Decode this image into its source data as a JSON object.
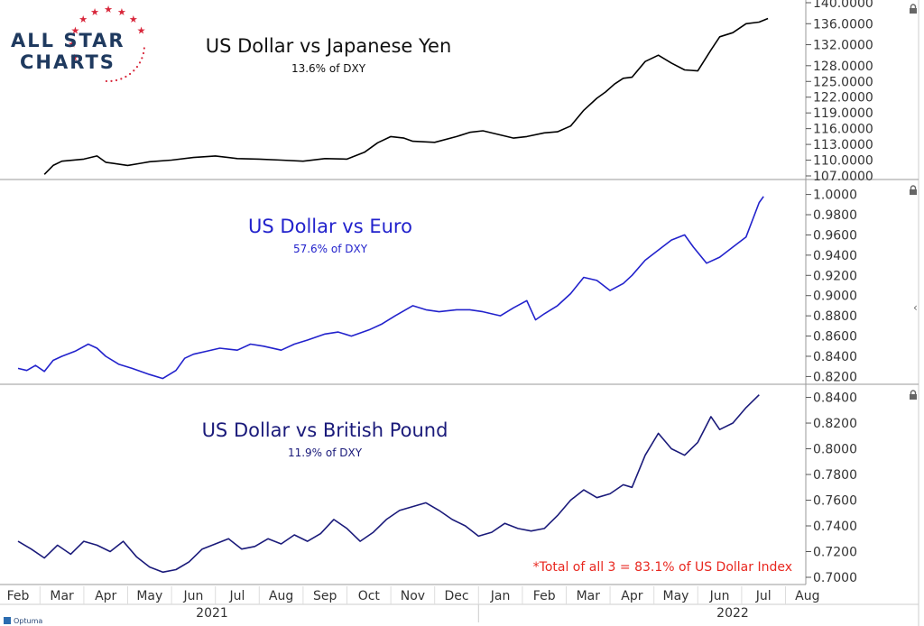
{
  "logo": {
    "line1": "ALL STAR",
    "line2": "CHARTS"
  },
  "footnote": "*Total of all 3 = 83.1% of US Dollar Index",
  "footnote_color": "#e8271f",
  "optuma_label": "Optuma",
  "x_months": [
    "Feb",
    "Mar",
    "Apr",
    "May",
    "Jun",
    "Jul",
    "Aug",
    "Sep",
    "Oct",
    "Nov",
    "Dec",
    "Jan",
    "Feb",
    "Mar",
    "Apr",
    "May",
    "Jun",
    "Jul",
    "Aug"
  ],
  "x_years": [
    "2021",
    "2022"
  ],
  "chart_data": [
    {
      "type": "line",
      "title": "US Dollar vs Japanese Yen",
      "subtitle": "13.6% of DXY",
      "color": "#000000",
      "ylim": [
        107,
        140
      ],
      "y_ticks": [
        "107.0000",
        "110.0000",
        "113.0000",
        "116.0000",
        "119.0000",
        "122.0000",
        "125.0000",
        "128.0000",
        "132.0000",
        "136.0000",
        "140.0000"
      ],
      "y_tick_values": [
        107,
        110,
        113,
        116,
        119,
        122,
        125,
        128,
        132,
        136,
        140
      ],
      "x": [
        0.6,
        0.8,
        1.0,
        1.5,
        1.8,
        2.0,
        2.5,
        2.8,
        3.0,
        3.5,
        4.0,
        4.5,
        5.0,
        5.5,
        6.0,
        6.5,
        7.0,
        7.5,
        7.9,
        8.2,
        8.5,
        8.8,
        9.0,
        9.5,
        10.0,
        10.3,
        10.6,
        11.0,
        11.3,
        11.6,
        12.0,
        12.3,
        12.6,
        12.9,
        13.2,
        13.4,
        13.6,
        13.8,
        14.0,
        14.3,
        14.6,
        14.9,
        15.2,
        15.5,
        15.8,
        16.0,
        16.3,
        16.6,
        16.9,
        17.1
      ],
      "values": [
        107.3,
        109.0,
        109.8,
        110.2,
        110.8,
        109.6,
        109.0,
        109.4,
        109.7,
        110.0,
        110.5,
        110.8,
        110.3,
        110.2,
        110.0,
        109.8,
        110.3,
        110.2,
        111.5,
        113.3,
        114.5,
        114.2,
        113.6,
        113.4,
        114.5,
        115.3,
        115.6,
        114.8,
        114.2,
        114.5,
        115.2,
        115.4,
        116.5,
        119.5,
        121.8,
        123.0,
        124.5,
        125.6,
        125.8,
        128.8,
        130.0,
        128.5,
        127.2,
        127.0,
        131.0,
        133.5,
        134.3,
        136.0,
        136.3,
        137.0
      ]
    },
    {
      "type": "line",
      "title": "US Dollar vs Euro",
      "subtitle": "57.6% of DXY",
      "color": "#2222cc",
      "ylim": [
        0.815,
        1.005
      ],
      "y_ticks": [
        "0.8200",
        "0.8400",
        "0.8600",
        "0.8800",
        "0.9000",
        "0.9200",
        "0.9400",
        "0.9600",
        "0.9800",
        "1.0000"
      ],
      "y_tick_values": [
        0.82,
        0.84,
        0.86,
        0.88,
        0.9,
        0.92,
        0.94,
        0.96,
        0.98,
        1.0
      ],
      "x": [
        0.0,
        0.2,
        0.4,
        0.6,
        0.8,
        1.0,
        1.3,
        1.6,
        1.8,
        2.0,
        2.3,
        2.6,
        3.0,
        3.3,
        3.6,
        3.8,
        4.0,
        4.3,
        4.6,
        5.0,
        5.3,
        5.6,
        6.0,
        6.3,
        6.6,
        7.0,
        7.3,
        7.6,
        8.0,
        8.3,
        8.6,
        9.0,
        9.3,
        9.6,
        10.0,
        10.3,
        10.6,
        11.0,
        11.3,
        11.6,
        11.8,
        12.0,
        12.3,
        12.6,
        12.9,
        13.2,
        13.5,
        13.8,
        14.0,
        14.3,
        14.6,
        14.9,
        15.2,
        15.4,
        15.7,
        16.0,
        16.3,
        16.6,
        16.9,
        17.0
      ],
      "values": [
        0.828,
        0.826,
        0.831,
        0.825,
        0.836,
        0.84,
        0.845,
        0.852,
        0.848,
        0.84,
        0.832,
        0.828,
        0.822,
        0.818,
        0.826,
        0.838,
        0.842,
        0.845,
        0.848,
        0.846,
        0.852,
        0.85,
        0.846,
        0.852,
        0.856,
        0.862,
        0.864,
        0.86,
        0.866,
        0.872,
        0.88,
        0.89,
        0.886,
        0.884,
        0.886,
        0.886,
        0.884,
        0.88,
        0.888,
        0.895,
        0.876,
        0.882,
        0.89,
        0.902,
        0.918,
        0.915,
        0.905,
        0.912,
        0.92,
        0.935,
        0.945,
        0.955,
        0.96,
        0.948,
        0.932,
        0.938,
        0.948,
        0.958,
        0.992,
        0.998
      ]
    },
    {
      "type": "line",
      "title": "US Dollar vs British Pound",
      "subtitle": "11.9% of DXY",
      "color": "#1a1a7a",
      "ylim": [
        0.7,
        0.846
      ],
      "y_ticks": [
        "0.7000",
        "0.7200",
        "0.7400",
        "0.7600",
        "0.7800",
        "0.8000",
        "0.8200",
        "0.8400"
      ],
      "y_tick_values": [
        0.7,
        0.72,
        0.74,
        0.76,
        0.78,
        0.8,
        0.82,
        0.84
      ],
      "x": [
        0.0,
        0.3,
        0.6,
        0.9,
        1.2,
        1.5,
        1.8,
        2.1,
        2.4,
        2.7,
        3.0,
        3.3,
        3.6,
        3.9,
        4.2,
        4.5,
        4.8,
        5.1,
        5.4,
        5.7,
        6.0,
        6.3,
        6.6,
        6.9,
        7.2,
        7.5,
        7.8,
        8.1,
        8.4,
        8.7,
        9.0,
        9.3,
        9.6,
        9.9,
        10.2,
        10.5,
        10.8,
        11.1,
        11.4,
        11.7,
        12.0,
        12.3,
        12.6,
        12.9,
        13.2,
        13.5,
        13.8,
        14.0,
        14.3,
        14.6,
        14.9,
        15.2,
        15.5,
        15.8,
        16.0,
        16.3,
        16.6,
        16.9
      ],
      "values": [
        0.728,
        0.722,
        0.715,
        0.725,
        0.718,
        0.728,
        0.725,
        0.72,
        0.728,
        0.716,
        0.708,
        0.704,
        0.706,
        0.712,
        0.722,
        0.726,
        0.73,
        0.722,
        0.724,
        0.73,
        0.726,
        0.733,
        0.728,
        0.734,
        0.745,
        0.738,
        0.728,
        0.735,
        0.745,
        0.752,
        0.755,
        0.758,
        0.752,
        0.745,
        0.74,
        0.732,
        0.735,
        0.742,
        0.738,
        0.736,
        0.738,
        0.748,
        0.76,
        0.768,
        0.762,
        0.765,
        0.772,
        0.77,
        0.795,
        0.812,
        0.8,
        0.795,
        0.805,
        0.825,
        0.815,
        0.82,
        0.832,
        0.842
      ]
    }
  ]
}
